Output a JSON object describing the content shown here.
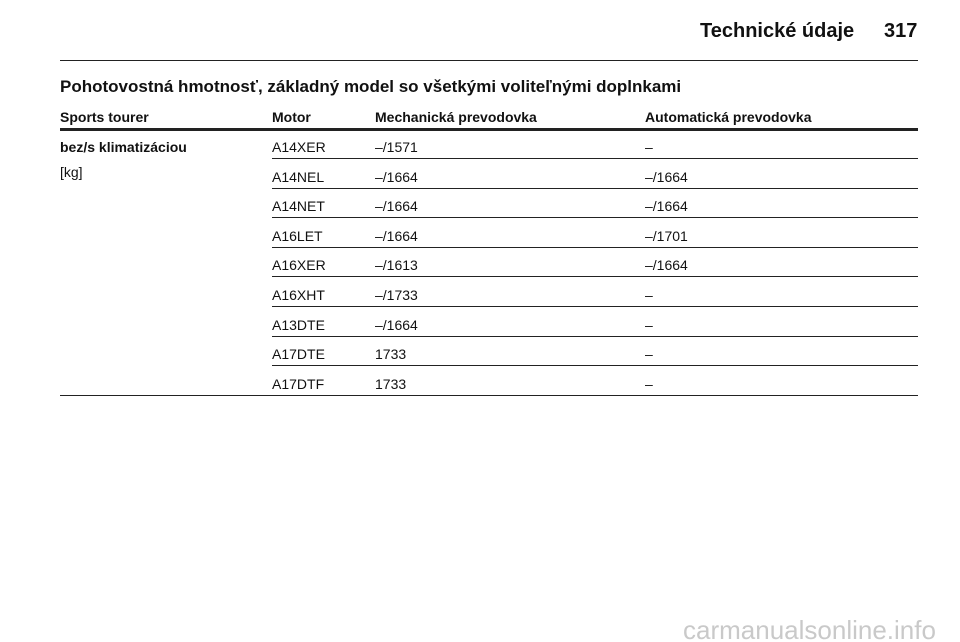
{
  "header": {
    "section": "Technické údaje",
    "page": "317"
  },
  "title": "Pohotovostná hmotnosť, základný model so všetkými voliteľnými doplnkami",
  "table": {
    "columns": [
      "Sports tourer",
      "Motor",
      "Mechanická prevodovka",
      "Automatická prevodovka"
    ],
    "label": "bez/s klimatizáciou",
    "unit": "[kg]",
    "rows": [
      [
        "A14XER",
        "–/1571",
        "–"
      ],
      [
        "A14NEL",
        "–/1664",
        "–/1664"
      ],
      [
        "A14NET",
        "–/1664",
        "–/1664"
      ],
      [
        "A16LET",
        "–/1664",
        "–/1701"
      ],
      [
        "A16XER",
        "–/1613",
        "–/1664"
      ],
      [
        "A16XHT",
        "–/1733",
        "–"
      ],
      [
        "A13DTE",
        "–/1664",
        "–"
      ],
      [
        "A17DTE",
        "1733",
        "–"
      ],
      [
        "A17DTF",
        "1733",
        "–"
      ]
    ]
  },
  "watermark": "carmanualsonline.info"
}
